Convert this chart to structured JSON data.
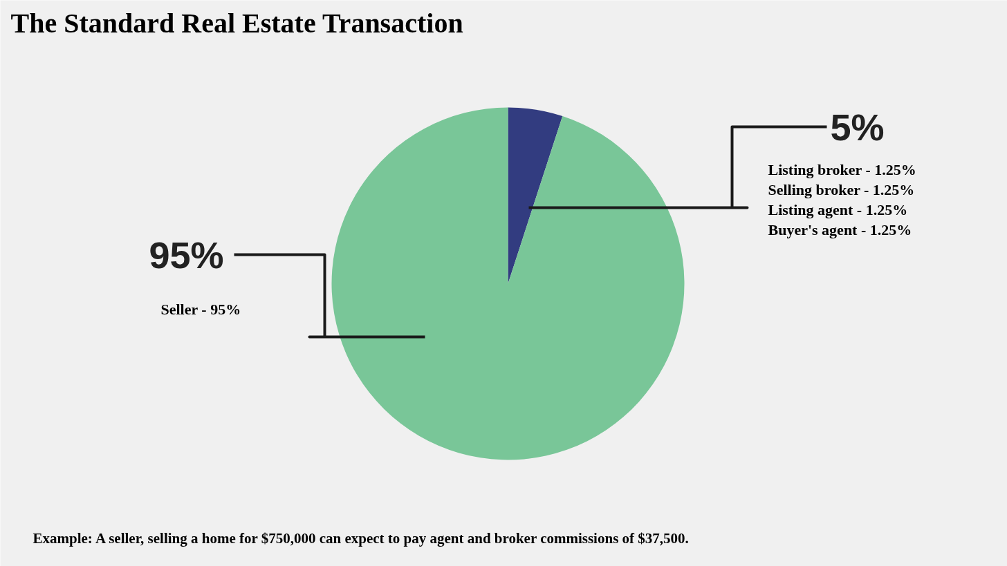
{
  "chart_data": {
    "type": "pie",
    "title": "The Standard Real Estate Transaction",
    "categories": [
      null,
      null
    ],
    "values": [
      5,
      95
    ],
    "colors": [
      "#323c80",
      "#79c698"
    ],
    "value_labels": [
      "5%",
      "95%"
    ],
    "annotations": [
      "Seller - 95%",
      "Listing broker - 1.25%",
      "Selling broker - 1.25%",
      "Listing agent - 1.25%",
      "Buyer's agent - 1.25%",
      "Example:  A seller, selling a home for $750,000 can expect to pay agent and broker commissions of $37,500."
    ]
  }
}
